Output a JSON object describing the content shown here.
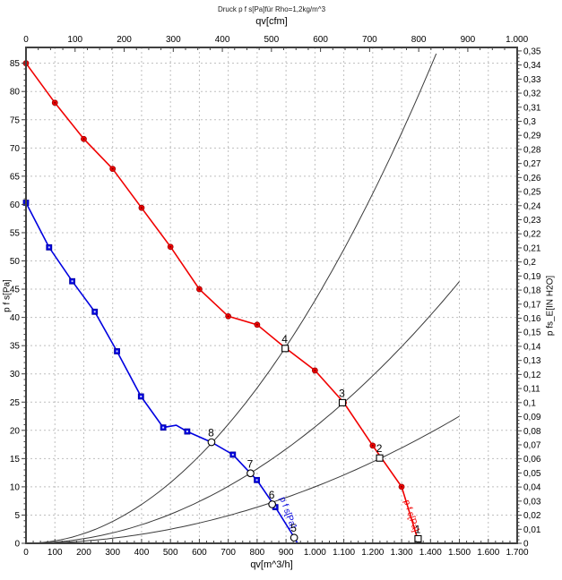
{
  "chart_data": {
    "type": "line",
    "title": "Druck p f s[Pa]für Rho=1,2kg/m^3",
    "background": "#ffffff",
    "grid": {
      "on": true,
      "color": "#bfbfbf",
      "x_step_m3h": 100,
      "y_step_pa": 5
    },
    "frame_color": "#404040",
    "axes": {
      "top": {
        "label": "qv[cfm]",
        "min": 0,
        "max": 1000,
        "tick_step": 100,
        "minor_step": 25,
        "tick_labels": [
          "0",
          "100",
          "200",
          "300",
          "400",
          "500",
          "600",
          "700",
          "800",
          "900",
          "1.000"
        ]
      },
      "bottom": {
        "label": "qv[m^3/h]",
        "min": 0,
        "max": 1700,
        "tick_step": 100,
        "minor_step": 25,
        "tick_labels": [
          "0",
          "100",
          "200",
          "300",
          "400",
          "500",
          "600",
          "700",
          "800",
          "900",
          "1.000",
          "1.100",
          "1.200",
          "1.300",
          "1.400",
          "1.500",
          "1.600",
          "1.700"
        ]
      },
      "left": {
        "label": "p f s[Pa]",
        "min": 0,
        "max": 85,
        "tick_step": 5,
        "minor_step": 1,
        "tick_labels": [
          "0",
          "5",
          "10",
          "15",
          "20",
          "25",
          "30",
          "35",
          "40",
          "45",
          "50",
          "55",
          "60",
          "65",
          "70",
          "75",
          "80",
          "85"
        ]
      },
      "right": {
        "label": "p fs_E[IN H2O]",
        "min": 0,
        "max": 0.35,
        "tick_step": 0.01,
        "minor_step": 0.0025,
        "pa_per_unit": 249.089,
        "tick_labels": [
          "0",
          "0,01",
          "0,02",
          "0,03",
          "0,04",
          "0,05",
          "0,06",
          "0,07",
          "0,08",
          "0,09",
          "0,1",
          "0,11",
          "0,12",
          "0,13",
          "0,14",
          "0,15",
          "0,16",
          "0,17",
          "0,18",
          "0,19",
          "0,2",
          "0,21",
          "0,22",
          "0,23",
          "0,24",
          "0,25",
          "0,26",
          "0,27",
          "0,28",
          "0,29",
          "0,3",
          "0,31",
          "0,32",
          "0,33",
          "0,34",
          "0,35"
        ]
      }
    },
    "series": [
      {
        "name": "fan-curve-red",
        "curve_label": "p f s[Pa]",
        "color": "#f00000",
        "marker": "circle",
        "label_anchor": {
          "x": 1308,
          "y": 7.5,
          "angle": 73
        },
        "points": [
          [
            0,
            85
          ],
          [
            100,
            78
          ],
          [
            200,
            71.6
          ],
          [
            300,
            66.3
          ],
          [
            400,
            59.4
          ],
          [
            500,
            52.5
          ],
          [
            600,
            45.0
          ],
          [
            700,
            40.2
          ],
          [
            800,
            38.7
          ],
          [
            900,
            34.5
          ],
          [
            1000,
            30.6
          ],
          [
            1100,
            24.9
          ],
          [
            1200,
            17.3
          ],
          [
            1300,
            10.0
          ],
          [
            1360,
            0
          ]
        ],
        "marker_points": [
          [
            0,
            85
          ],
          [
            100,
            78
          ],
          [
            200,
            71.6
          ],
          [
            300,
            66.3
          ],
          [
            400,
            59.4
          ],
          [
            500,
            52.5
          ],
          [
            600,
            45.0
          ],
          [
            700,
            40.2
          ],
          [
            800,
            38.7
          ],
          [
            900,
            34.5
          ],
          [
            1000,
            30.6
          ],
          [
            1100,
            24.9
          ],
          [
            1200,
            17.3
          ],
          [
            1300,
            10.0
          ]
        ]
      },
      {
        "name": "fan-curve-blue",
        "curve_label": "p f s[Pa]",
        "color": "#0000e0",
        "marker": "square",
        "label_anchor": {
          "x": 878,
          "y": 8,
          "angle": 70
        },
        "points": [
          [
            0,
            60.3
          ],
          [
            80,
            52.4
          ],
          [
            160,
            46.4
          ],
          [
            238,
            41.0
          ],
          [
            315,
            34.0
          ],
          [
            398,
            26.0
          ],
          [
            475,
            20.5
          ],
          [
            520,
            20.9
          ],
          [
            558,
            19.8
          ],
          [
            642,
            17.9
          ],
          [
            716,
            15.7
          ],
          [
            777,
            12.4
          ],
          [
            799,
            11.2
          ],
          [
            863,
            6.4
          ],
          [
            928,
            1.1
          ],
          [
            940,
            0
          ]
        ],
        "marker_points": [
          [
            0,
            60.3
          ],
          [
            80,
            52.4
          ],
          [
            160,
            46.4
          ],
          [
            238,
            41.0
          ],
          [
            315,
            34.0
          ],
          [
            398,
            26.0
          ],
          [
            475,
            20.5
          ],
          [
            558,
            19.8
          ],
          [
            716,
            15.7
          ],
          [
            799,
            11.2
          ],
          [
            863,
            6.4
          ]
        ]
      }
    ],
    "system_curves": [
      {
        "name": "system-curve-through-8-4",
        "k": 4.3e-05,
        "qv_end": 1429,
        "color": "#3a3a3a"
      },
      {
        "name": "system-curve-through-7-3",
        "k": 2.06e-05,
        "qv_end": 1500,
        "color": "#3a3a3a"
      },
      {
        "name": "system-curve-through-6-2",
        "k": 1e-05,
        "qv_end": 1500,
        "color": "#3a3a3a"
      }
    ],
    "operating_points": [
      {
        "label": "1",
        "x": 1357,
        "y": 0.8,
        "marker": "square"
      },
      {
        "label": "2",
        "x": 1224,
        "y": 15.1,
        "marker": "square"
      },
      {
        "label": "3",
        "x": 1095,
        "y": 24.9,
        "marker": "square"
      },
      {
        "label": "4",
        "x": 897,
        "y": 34.5,
        "marker": "square"
      },
      {
        "label": "5",
        "x": 928,
        "y": 1.0,
        "marker": "circle"
      },
      {
        "label": "6",
        "x": 852,
        "y": 6.9,
        "marker": "circle"
      },
      {
        "label": "7",
        "x": 777,
        "y": 12.4,
        "marker": "circle"
      },
      {
        "label": "8",
        "x": 642,
        "y": 17.9,
        "marker": "circle"
      }
    ]
  }
}
